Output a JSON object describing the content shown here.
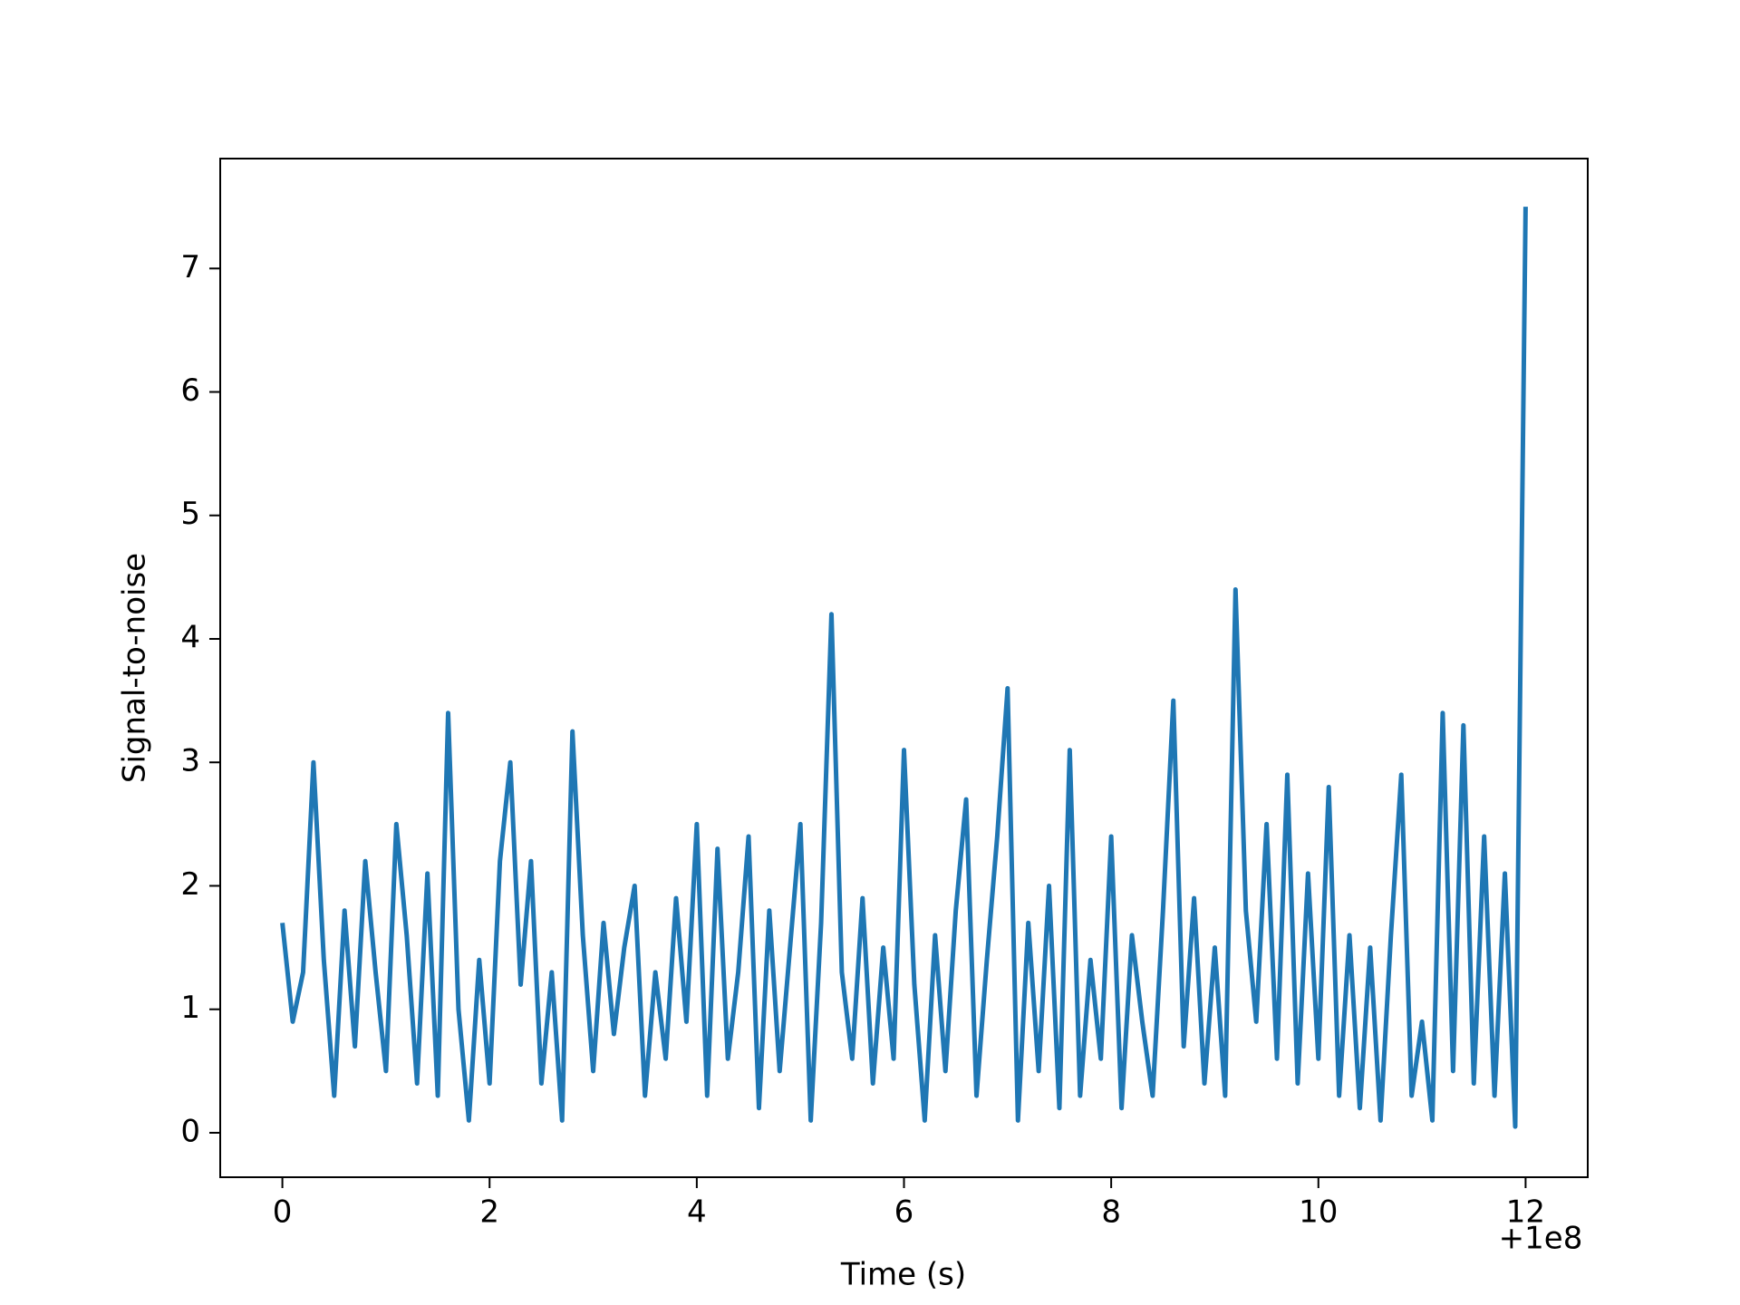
{
  "chart_data": {
    "type": "line",
    "xlabel": "Time (s)",
    "ylabel": "Signal-to-noise",
    "x_offset_label": "+1e8",
    "color": "#1f77b4",
    "x": [
      0,
      0.1,
      0.2,
      0.3,
      0.4,
      0.5,
      0.6,
      0.7,
      0.8,
      0.9,
      1,
      1.1,
      1.2,
      1.3,
      1.4,
      1.5,
      1.6,
      1.7,
      1.8,
      1.9,
      2,
      2.1,
      2.2,
      2.3,
      2.4,
      2.5,
      2.6,
      2.7,
      2.8,
      2.9,
      3,
      3.1,
      3.2,
      3.3,
      3.4,
      3.5,
      3.6,
      3.7,
      3.8,
      3.9,
      4,
      4.1,
      4.2,
      4.3,
      4.4,
      4.5,
      4.6,
      4.7,
      4.8,
      4.9,
      5,
      5.1,
      5.2,
      5.3,
      5.4,
      5.5,
      5.6,
      5.7,
      5.8,
      5.9,
      6,
      6.1,
      6.2,
      6.3,
      6.4,
      6.5,
      6.6,
      6.7,
      6.8,
      6.9,
      7,
      7.1,
      7.2,
      7.3,
      7.4,
      7.5,
      7.6,
      7.7,
      7.8,
      7.9,
      8,
      8.1,
      8.2,
      8.3,
      8.4,
      8.5,
      8.6,
      8.7,
      8.8,
      8.9,
      9,
      9.1,
      9.2,
      9.3,
      9.4,
      9.5,
      9.6,
      9.7,
      9.8,
      9.9,
      10,
      10.1,
      10.2,
      10.3,
      10.4,
      10.5,
      10.6,
      10.7,
      10.8,
      10.9,
      11,
      11.1,
      11.2,
      11.3,
      11.4,
      11.5,
      11.6,
      11.7,
      11.8,
      11.9,
      12
    ],
    "values": [
      1.7,
      0.9,
      1.3,
      3.0,
      1.4,
      0.3,
      1.8,
      0.7,
      2.2,
      1.3,
      0.5,
      2.5,
      1.6,
      0.4,
      2.1,
      0.3,
      3.4,
      1.0,
      0.1,
      1.4,
      0.4,
      2.2,
      3.0,
      1.2,
      2.2,
      0.4,
      1.3,
      0.1,
      3.25,
      1.6,
      0.5,
      1.7,
      0.8,
      1.5,
      2.0,
      0.3,
      1.3,
      0.6,
      1.9,
      0.9,
      2.5,
      0.3,
      2.3,
      0.6,
      1.3,
      2.4,
      0.2,
      1.8,
      0.5,
      1.5,
      2.5,
      0.1,
      1.7,
      4.2,
      1.3,
      0.6,
      1.9,
      0.4,
      1.5,
      0.6,
      3.1,
      1.2,
      0.1,
      1.6,
      0.5,
      1.8,
      2.7,
      0.3,
      1.4,
      2.4,
      3.6,
      0.1,
      1.7,
      0.5,
      2.0,
      0.2,
      3.1,
      0.3,
      1.4,
      0.6,
      2.4,
      0.2,
      1.6,
      0.9,
      0.3,
      1.8,
      3.5,
      0.7,
      1.9,
      0.4,
      1.5,
      0.3,
      4.4,
      1.8,
      0.9,
      2.5,
      0.6,
      2.9,
      0.4,
      2.1,
      0.6,
      2.8,
      0.3,
      1.6,
      0.2,
      1.5,
      0.1,
      1.6,
      2.9,
      0.3,
      0.9,
      0.1,
      3.4,
      0.5,
      3.3,
      0.4,
      2.4,
      0.3,
      2.1,
      0.05,
      7.5
    ],
    "xlim": [
      -0.6,
      12.6
    ],
    "ylim": [
      -0.36,
      7.89
    ],
    "xticks": [
      0,
      2,
      4,
      6,
      8,
      10,
      12
    ],
    "yticks": [
      0,
      1,
      2,
      3,
      4,
      5,
      6,
      7
    ]
  }
}
